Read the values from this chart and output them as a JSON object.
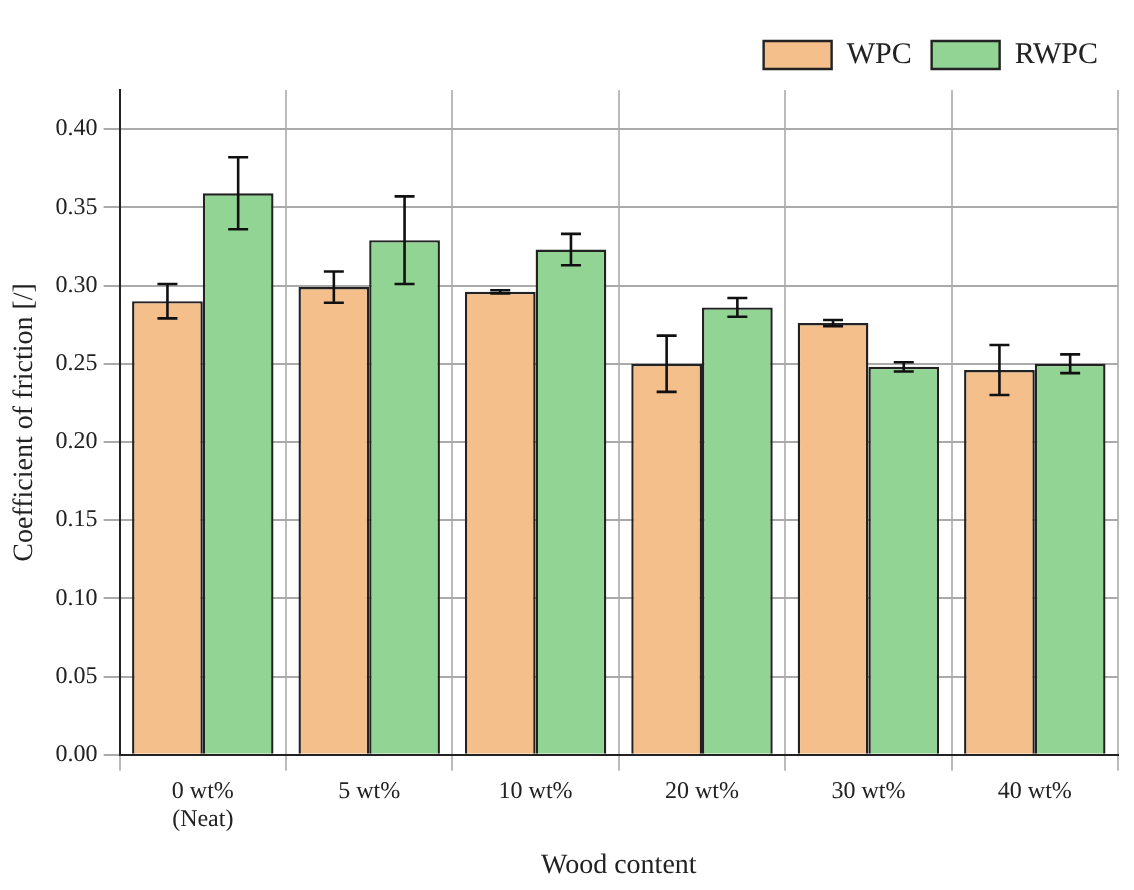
{
  "chart_data": {
    "type": "bar",
    "xlabel": "Wood content",
    "ylabel": "Coefficient of friction [/]",
    "categories": [
      "0 wt%\n(Neat)",
      "5 wt%",
      "10 wt%",
      "20 wt%",
      "30 wt%",
      "40 wt%"
    ],
    "series": [
      {
        "name": "WPC",
        "color": "#f5bf8c",
        "values": [
          0.29,
          0.299,
          0.296,
          0.25,
          0.276,
          0.246
        ],
        "errors": [
          0.011,
          0.01,
          0.001,
          0.018,
          0.002,
          0.016
        ]
      },
      {
        "name": "RWPC",
        "color": "#92d493",
        "values": [
          0.359,
          0.329,
          0.323,
          0.286,
          0.248,
          0.25
        ],
        "errors": [
          0.023,
          0.028,
          0.01,
          0.006,
          0.003,
          0.006
        ]
      }
    ],
    "ylim": [
      0,
      0.425
    ],
    "yticks": [
      {
        "value": 0,
        "label": "0.00"
      },
      0.05,
      {
        "value": 0.1,
        "label": "0.10"
      },
      0.15,
      {
        "value": 0.2,
        "label": "0.20"
      },
      0.25,
      {
        "value": 0.3,
        "label": "0.30"
      },
      0.35,
      {
        "value": 0.4,
        "label": "0.40"
      }
    ],
    "grid": true,
    "legend": "top right"
  }
}
